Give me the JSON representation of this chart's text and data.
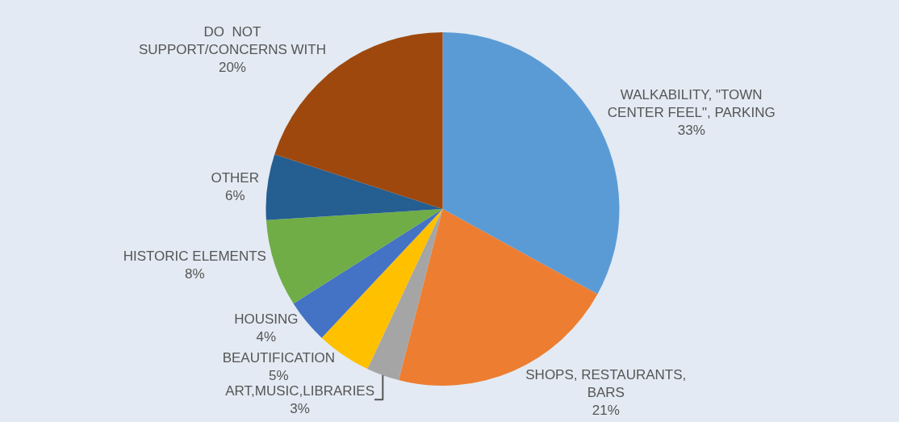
{
  "chart_data": {
    "type": "pie",
    "categories": [
      "WALKABILITY, \"TOWN CENTER FEEL\", PARKING",
      "SHOPS, RESTAURANTS, BARS",
      "ART,MUSIC,LIBRARIES",
      "BEAUTIFICATION",
      "HOUSING",
      "HISTORIC ELEMENTS",
      "OTHER",
      "DO  NOT SUPPORT/CONCERNS WITH"
    ],
    "values": [
      33,
      21,
      3,
      5,
      4,
      8,
      6,
      20
    ],
    "value_labels": [
      "33%",
      "21%",
      "3%",
      "5%",
      "4%",
      "8%",
      "6%",
      "20%"
    ],
    "colors": [
      "#5b9bd5",
      "#ed7d31",
      "#a5a5a5",
      "#ffc000",
      "#4472c4",
      "#70ad47",
      "#255e91",
      "#9e480e"
    ],
    "legend": false
  }
}
